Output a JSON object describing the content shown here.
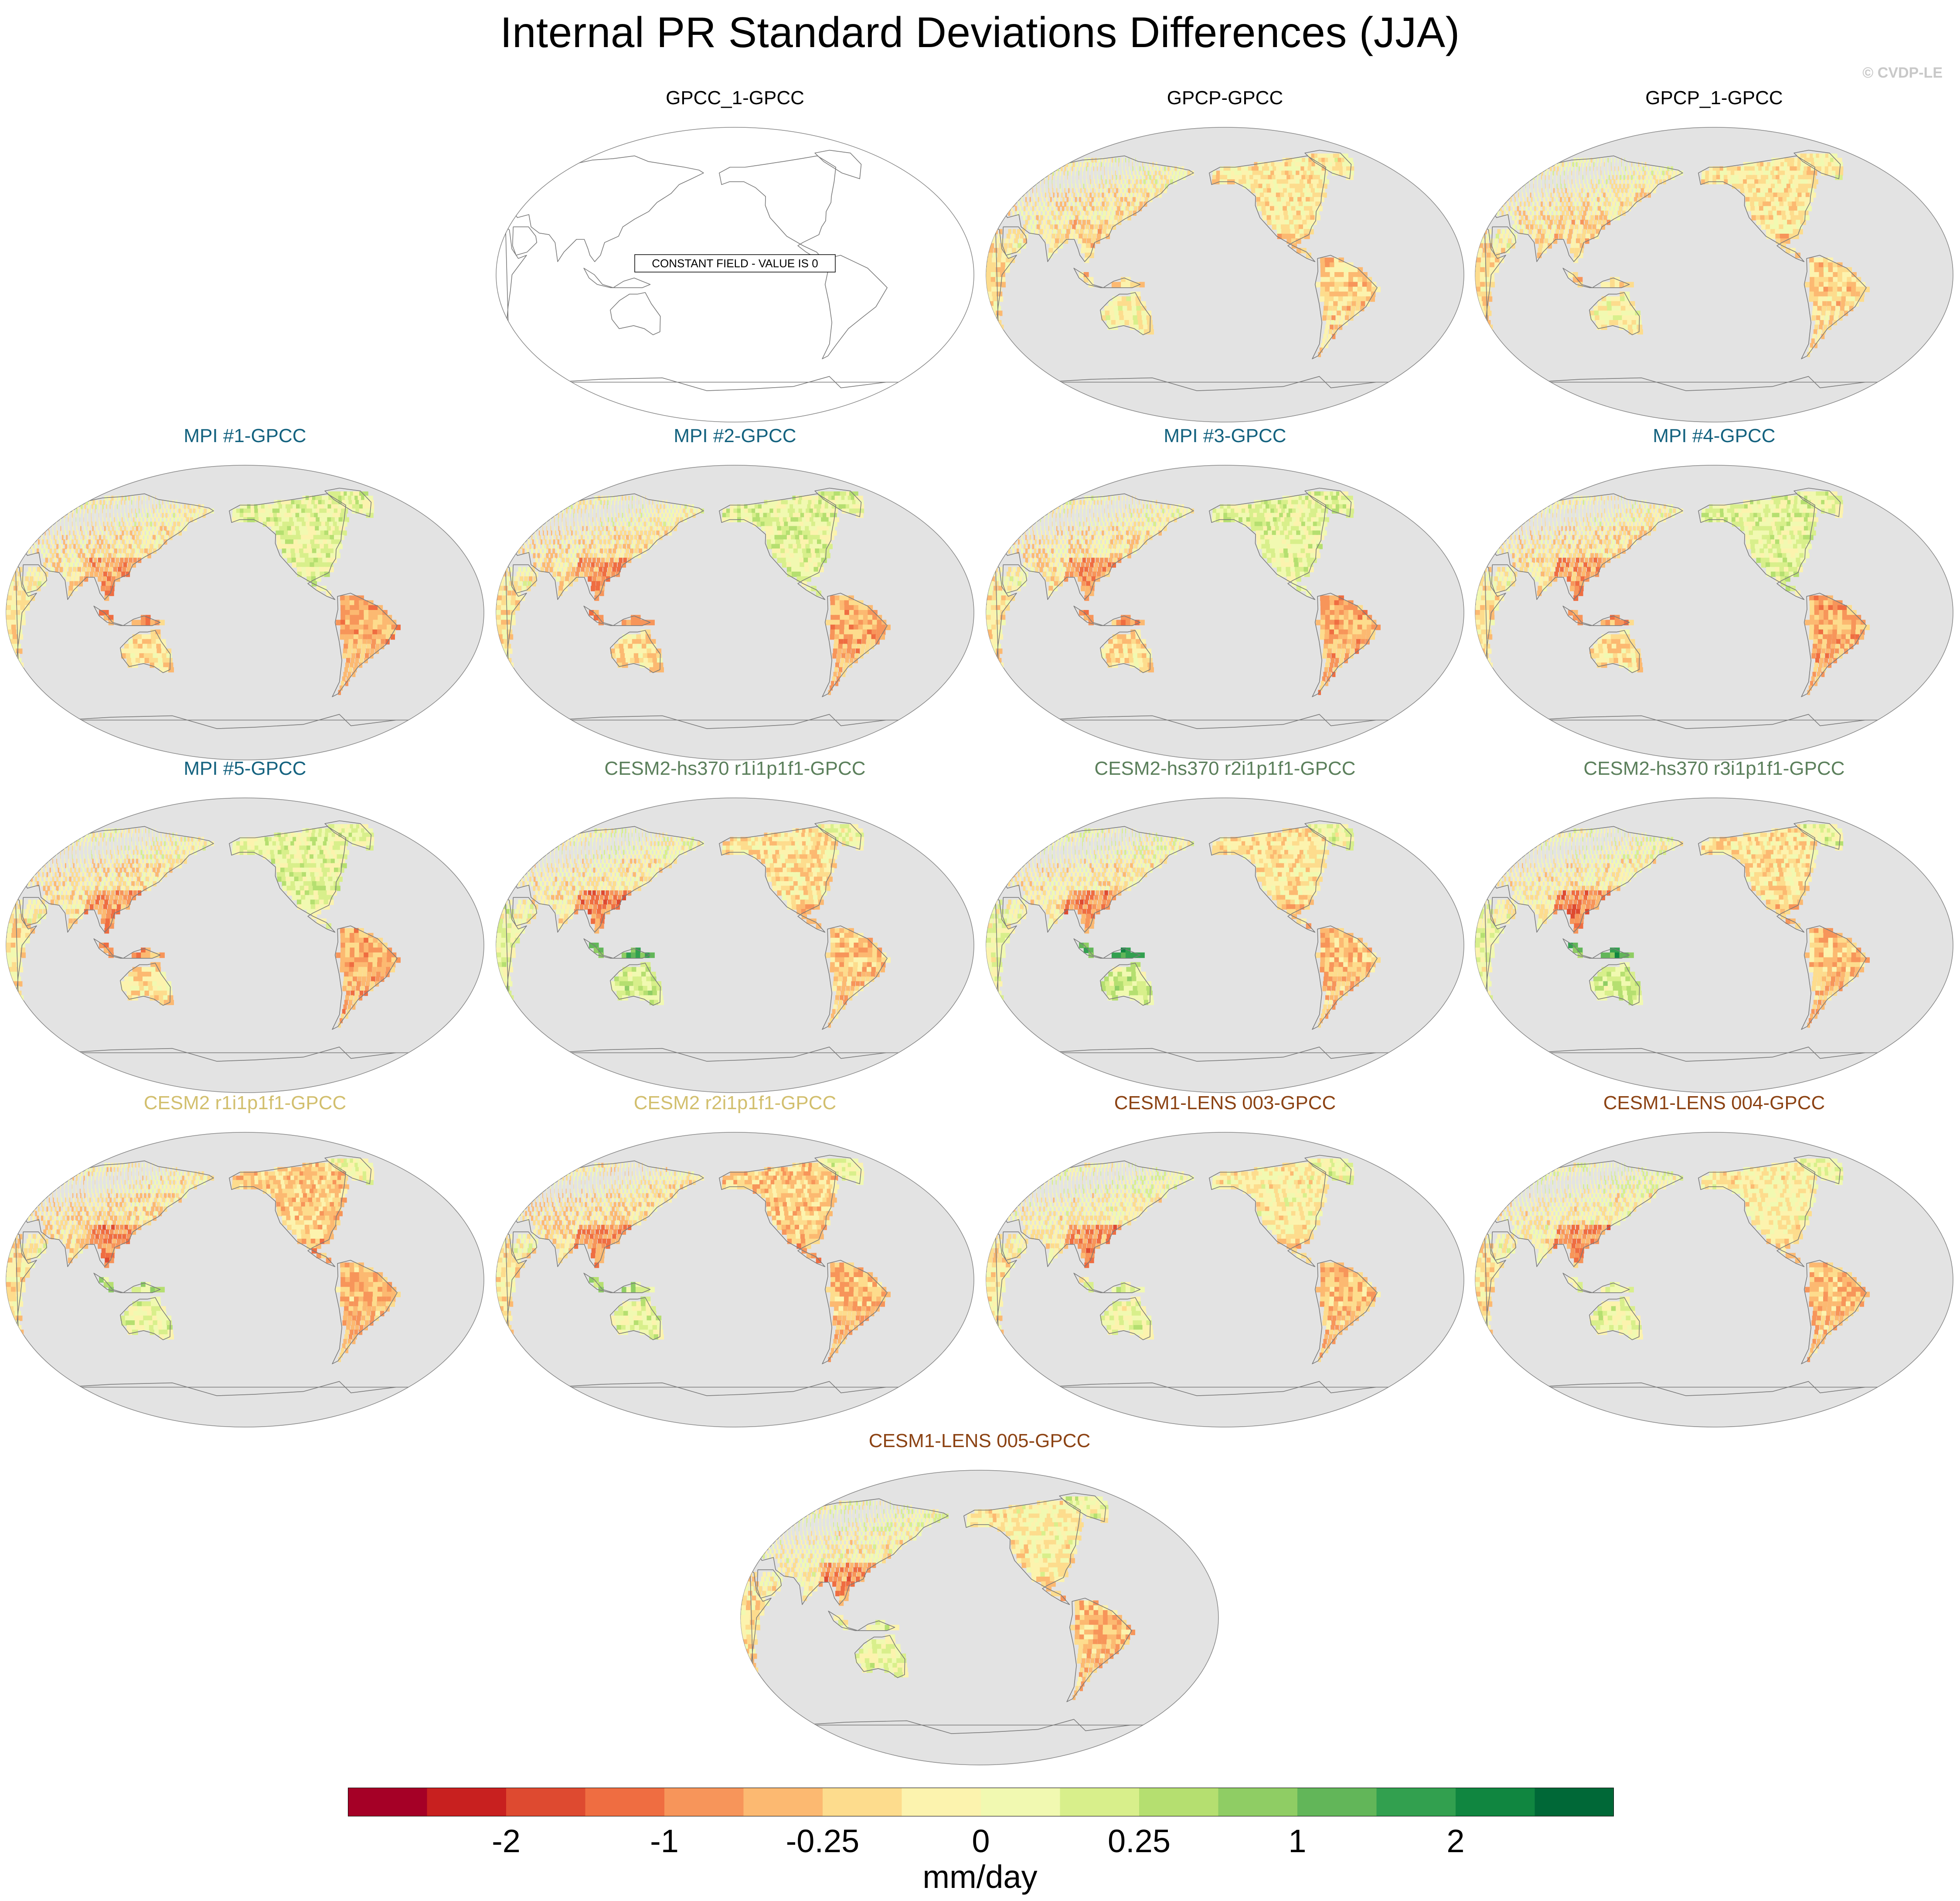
{
  "title": "Internal PR Standard Deviations Differences (JJA)",
  "watermark": "© CVDP-LE",
  "colors": {
    "ocean": "#e3e3e3",
    "coast": "#7a7a7a",
    "title_obs": "#000000",
    "title_mpi": "#14627f",
    "title_cesm2hs": "#5b7f5b",
    "title_cesm2": "#d2bf6e",
    "title_lens": "#8c4314"
  },
  "constant_field_note": "CONSTANT FIELD - VALUE IS 0",
  "panels": [
    {
      "label": "GPCC_1-GPCC",
      "group": "obs",
      "type": "constant"
    },
    {
      "label": "GPCP-GPCC",
      "group": "obs",
      "type": "gpcp"
    },
    {
      "label": "GPCP_1-GPCC",
      "group": "obs",
      "type": "gpcp"
    },
    {
      "label": "MPI #1-GPCC",
      "group": "mpi",
      "type": "mpi"
    },
    {
      "label": "MPI #2-GPCC",
      "group": "mpi",
      "type": "mpi"
    },
    {
      "label": "MPI #3-GPCC",
      "group": "mpi",
      "type": "mpi"
    },
    {
      "label": "MPI #4-GPCC",
      "group": "mpi",
      "type": "mpi"
    },
    {
      "label": "MPI #5-GPCC",
      "group": "mpi",
      "type": "mpi"
    },
    {
      "label": "CESM2-hs370 r1i1p1f1-GPCC",
      "group": "cesm2hs",
      "type": "cesm2hs"
    },
    {
      "label": "CESM2-hs370 r2i1p1f1-GPCC",
      "group": "cesm2hs",
      "type": "cesm2hs"
    },
    {
      "label": "CESM2-hs370 r3i1p1f1-GPCC",
      "group": "cesm2hs",
      "type": "cesm2hs"
    },
    {
      "label": "CESM2 r1i1p1f1-GPCC",
      "group": "cesm2",
      "type": "cesm2"
    },
    {
      "label": "CESM2 r2i1p1f1-GPCC",
      "group": "cesm2",
      "type": "cesm2"
    },
    {
      "label": "CESM1-LENS 003-GPCC",
      "group": "lens",
      "type": "lens"
    },
    {
      "label": "CESM1-LENS 004-GPCC",
      "group": "lens",
      "type": "lens"
    },
    {
      "label": "CESM1-LENS 005-GPCC",
      "group": "lens",
      "type": "lens"
    }
  ],
  "colorbar": {
    "colors": [
      "#a50026",
      "#c8201f",
      "#de4a30",
      "#ef6d41",
      "#f7955a",
      "#fcb971",
      "#fddc8d",
      "#fcf3ae",
      "#f1f9b1",
      "#d8ef8b",
      "#b5df70",
      "#8fcd64",
      "#62b659",
      "#32a04f",
      "#108640",
      "#006837"
    ],
    "labels": [
      {
        "text": "-2",
        "boundary": 2
      },
      {
        "text": "-1",
        "boundary": 4
      },
      {
        "text": "-0.25",
        "boundary": 6
      },
      {
        "text": "0",
        "boundary": 8
      },
      {
        "text": "0.25",
        "boundary": 10
      },
      {
        "text": "1",
        "boundary": 12
      },
      {
        "text": "2",
        "boundary": 14
      }
    ],
    "units": "mm/day"
  }
}
